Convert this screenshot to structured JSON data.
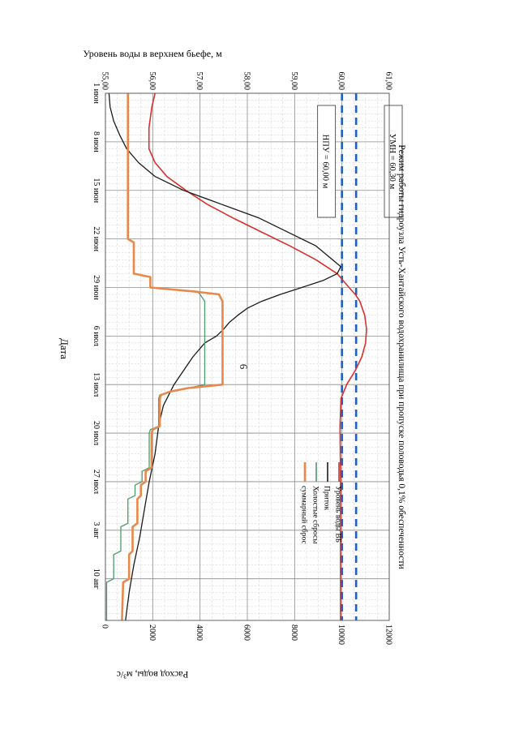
{
  "page_number": "6",
  "chart_data": {
    "type": "line",
    "title": "Режим работы гидроузла Усть-Хантайского водохранилища при пропуске половодья 0,1% обеспеченности",
    "xlabel": "Дата",
    "ylabel_left": "Уровень воды в верхнем бьефе, м",
    "ylabel_right": "Расход воды, м³/с",
    "x_range": [
      0,
      76
    ],
    "x_ticks": [
      {
        "day": 0,
        "label": "1 июн"
      },
      {
        "day": 7,
        "label": "8 июн"
      },
      {
        "day": 14,
        "label": "15 июн"
      },
      {
        "day": 21,
        "label": "22 июн"
      },
      {
        "day": 28,
        "label": "29 июн"
      },
      {
        "day": 35,
        "label": "6 июл"
      },
      {
        "day": 42,
        "label": "13 июл"
      },
      {
        "day": 49,
        "label": "20 июл"
      },
      {
        "day": 56,
        "label": "27 июл"
      },
      {
        "day": 63,
        "label": "3 авг"
      },
      {
        "day": 70,
        "label": "10 авг"
      }
    ],
    "y_left": {
      "range": [
        55,
        61
      ],
      "ticks": [
        "55,00",
        "56,00",
        "57,00",
        "58,00",
        "59,00",
        "60,00",
        "61,00"
      ]
    },
    "y_right": {
      "range": [
        0,
        12000
      ],
      "ticks": [
        "0",
        "2000",
        "4000",
        "6000",
        "8000",
        "10000",
        "12000"
      ]
    },
    "reference_lines": [
      {
        "name": "УМН",
        "label": "УМН  = 60,30 м",
        "value": 60.3,
        "color": "#1f5fbf"
      },
      {
        "name": "НПУ",
        "label": "НПУ = 60,00 м",
        "value": 60.0,
        "color": "#1f5fbf"
      }
    ],
    "legend": [
      {
        "label": "Уровень воды ВБ",
        "color": "#d9302c"
      },
      {
        "label": "Приток",
        "color": "#1a1a1a"
      },
      {
        "label": "Холостые сбросы",
        "color": "#4f9a6b"
      },
      {
        "label": "суммарный сброс",
        "color": "#e8884b"
      }
    ],
    "series": [
      {
        "name": "Уровень воды ВБ",
        "axis": "left",
        "color": "#d9302c",
        "x": [
          0,
          2,
          5,
          8,
          10,
          12,
          14,
          16,
          18,
          20,
          22,
          24,
          26,
          28,
          29,
          30,
          32,
          34,
          36,
          38,
          40,
          42,
          44,
          48,
          55,
          62,
          70,
          76
        ],
        "y": [
          56.05,
          55.98,
          55.92,
          55.92,
          56.05,
          56.3,
          56.7,
          57.15,
          57.7,
          58.3,
          58.9,
          59.45,
          59.9,
          60.15,
          60.28,
          60.38,
          60.48,
          60.52,
          60.5,
          60.42,
          60.28,
          60.1,
          59.98,
          59.96,
          59.97,
          59.97,
          59.97,
          59.97
        ]
      },
      {
        "name": "Приток",
        "axis": "right",
        "color": "#1a1a1a",
        "x": [
          0,
          2,
          4,
          6,
          8,
          10,
          12,
          14,
          16,
          18,
          20,
          22,
          24,
          25,
          26,
          27,
          28,
          29,
          30,
          31,
          32,
          33,
          34,
          35,
          36,
          38,
          40,
          42,
          45,
          48,
          52,
          56,
          60,
          64,
          68,
          72,
          76
        ],
        "y": [
          150,
          200,
          350,
          600,
          900,
          1400,
          2100,
          3300,
          4900,
          6500,
          7700,
          8900,
          9600,
          9950,
          9800,
          9200,
          8300,
          7400,
          6600,
          6000,
          5600,
          5250,
          5000,
          4700,
          4200,
          3700,
          3300,
          2900,
          2450,
          2250,
          2100,
          1850,
          1650,
          1450,
          1200,
          1000,
          850
        ]
      },
      {
        "name": "Холостые сбросы",
        "axis": "right",
        "color": "#4f9a6b",
        "x": [
          28.6,
          29,
          30,
          31,
          42,
          42.5,
          43,
          43.5,
          44,
          48,
          48.5,
          49,
          54,
          54.5,
          56,
          56.5,
          58,
          58.5,
          62,
          62.5,
          66,
          66.5,
          70,
          70.5,
          76
        ],
        "y": [
          3900,
          4000,
          4200,
          4200,
          4200,
          3500,
          2700,
          2300,
          2250,
          2250,
          1900,
          1850,
          1850,
          1550,
          1550,
          1250,
          1250,
          950,
          950,
          650,
          650,
          350,
          350,
          50,
          50
        ]
      },
      {
        "name": "суммарный сброс",
        "axis": "right",
        "color": "#e8884b",
        "x": [
          0,
          21,
          21.5,
          26,
          26.5,
          28,
          28.6,
          29,
          30,
          31,
          42,
          42.5,
          43,
          43.5,
          44,
          48,
          48.5,
          49,
          54,
          54.5,
          56,
          56.5,
          58,
          58.5,
          62,
          62.5,
          66,
          66.5,
          70,
          70.5,
          76
        ],
        "y": [
          950,
          950,
          1200,
          1200,
          1900,
          1900,
          3800,
          4800,
          4950,
          4950,
          4950,
          3500,
          2750,
          2350,
          2300,
          2300,
          2000,
          1950,
          1950,
          1700,
          1700,
          1500,
          1500,
          1350,
          1350,
          1150,
          1150,
          1000,
          1000,
          750,
          700
        ]
      }
    ]
  }
}
